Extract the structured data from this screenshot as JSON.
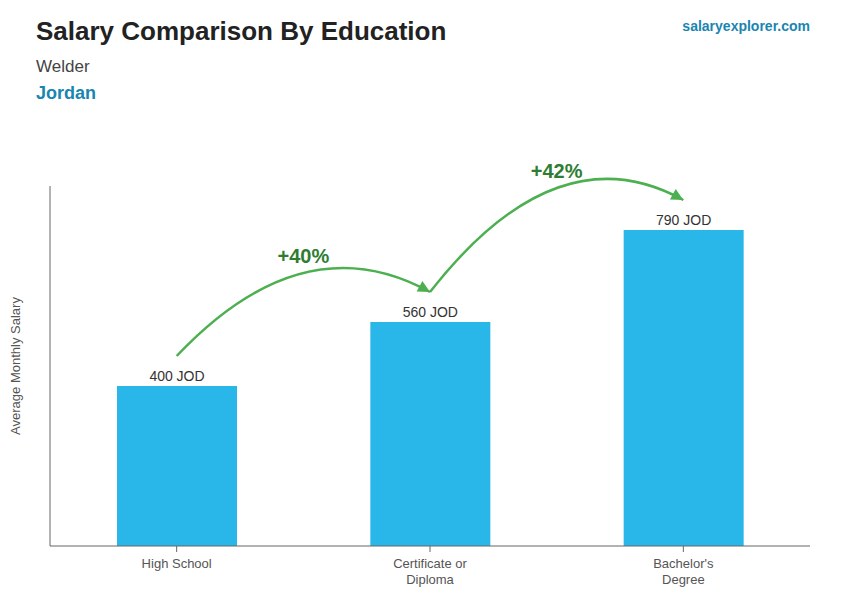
{
  "chart_data": {
    "type": "bar",
    "title": "Salary Comparison By Education",
    "subtitle": "Welder",
    "ylabel": "Average Monthly Salary",
    "categories": [
      "High School",
      "Certificate or\nDiploma",
      "Bachelor's\nDegree"
    ],
    "values": [
      400,
      560,
      790
    ],
    "value_labels": [
      "400 JOD",
      "560 JOD",
      "790 JOD"
    ],
    "data_labels": true,
    "color": "#29b6e8",
    "ylim": [
      0,
      900
    ],
    "tick_labels": "x",
    "grid": false,
    "annotations": [
      {
        "text": "Jordan"
      },
      {
        "text": "salaryexplorer.com"
      },
      {
        "text": "+40%",
        "from": "High School",
        "to": "Certificate or\nDiploma"
      },
      {
        "text": "+42%",
        "from": "Certificate or\nDiploma",
        "to": "Bachelor's\nDegree"
      }
    ]
  }
}
